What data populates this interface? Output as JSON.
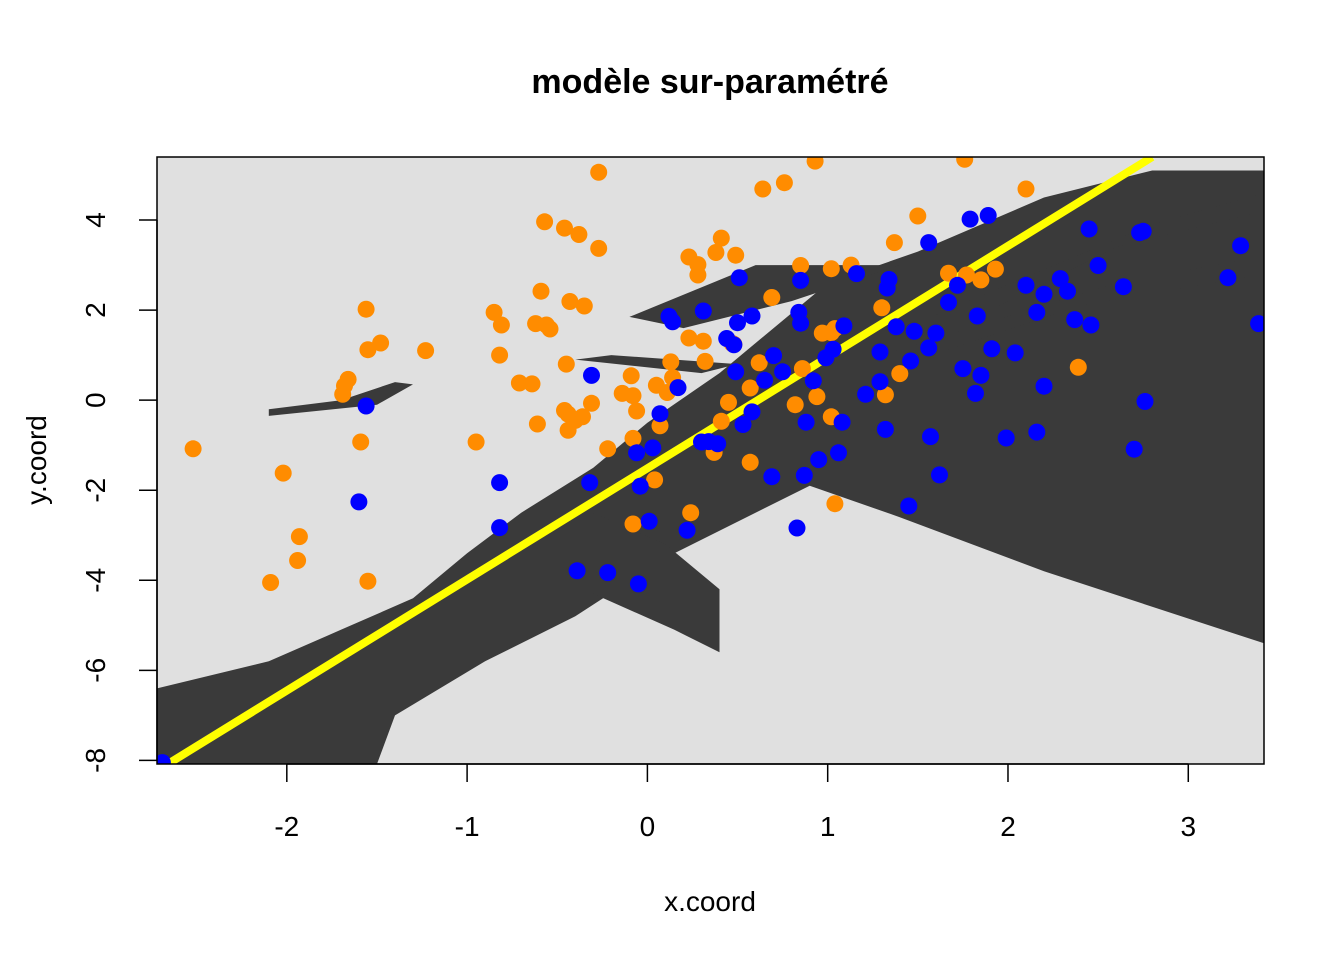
{
  "chart_data": {
    "type": "scatter",
    "title": "modèle sur-paramétré",
    "xlabel": "x.coord",
    "ylabel": "y.coord",
    "xlim": [
      -2.72,
      3.42
    ],
    "ylim": [
      -8.08,
      5.4
    ],
    "xticks": [
      "-2",
      "-1",
      "0",
      "1",
      "2",
      "3"
    ],
    "yticks": [
      "-8",
      "-6",
      "-4",
      "-2",
      "0",
      "2",
      "4"
    ],
    "background": {
      "light": "#e0e0e0",
      "dark": "#3a3a3a"
    },
    "decision_line": {
      "color": "#ffff00",
      "points": [
        [
          -2.66,
          -8.08
        ],
        [
          2.8,
          5.4
        ]
      ]
    },
    "dark_regions": [
      [
        [
          -2.72,
          -6.4
        ],
        [
          -2.1,
          -5.8
        ],
        [
          -1.7,
          -5.1
        ],
        [
          -1.3,
          -4.4
        ],
        [
          -1.0,
          -3.4
        ],
        [
          -0.7,
          -2.5
        ],
        [
          -0.3,
          -1.5
        ],
        [
          0.0,
          -0.5
        ],
        [
          0.4,
          0.6
        ],
        [
          0.7,
          1.6
        ],
        [
          1.0,
          2.6
        ],
        [
          1.5,
          3.3
        ],
        [
          2.2,
          4.5
        ],
        [
          2.8,
          5.1
        ],
        [
          3.42,
          5.1
        ],
        [
          3.42,
          -5.4
        ],
        [
          2.2,
          -3.8
        ],
        [
          1.4,
          -2.6
        ],
        [
          0.9,
          -1.9
        ],
        [
          0.5,
          -2.7
        ],
        [
          0.1,
          -3.5
        ],
        [
          -0.4,
          -4.8
        ],
        [
          -0.9,
          -5.8
        ],
        [
          -1.4,
          -7.0
        ],
        [
          -1.5,
          -8.08
        ],
        [
          -2.72,
          -8.08
        ]
      ],
      [
        [
          -0.3,
          -2.5
        ],
        [
          0.1,
          -3.2
        ],
        [
          0.4,
          -4.2
        ],
        [
          0.4,
          -5.6
        ],
        [
          0.15,
          -5.1
        ],
        [
          -0.3,
          -4.3
        ]
      ],
      [
        [
          -2.1,
          -0.35
        ],
        [
          -1.5,
          -0.1
        ],
        [
          -1.3,
          0.35
        ],
        [
          -1.4,
          0.4
        ],
        [
          -1.7,
          0.0
        ],
        [
          -2.1,
          -0.2
        ]
      ],
      [
        [
          -0.4,
          0.9
        ],
        [
          0.3,
          0.6
        ],
        [
          0.5,
          0.8
        ],
        [
          -0.2,
          1.0
        ]
      ],
      [
        [
          -0.1,
          1.85
        ],
        [
          0.6,
          3.0
        ],
        [
          1.4,
          3.0
        ],
        [
          0.8,
          2.2
        ],
        [
          0.2,
          1.6
        ]
      ],
      [
        [
          1.6,
          1.9
        ],
        [
          2.8,
          3.9
        ],
        [
          3.42,
          4.6
        ],
        [
          3.42,
          4.2
        ],
        [
          2.6,
          3.4
        ],
        [
          1.8,
          1.8
        ]
      ],
      [
        [
          1.3,
          1.0
        ],
        [
          2.6,
          2.6
        ],
        [
          3.42,
          3.2
        ],
        [
          3.42,
          2.8
        ],
        [
          2.4,
          2.1
        ],
        [
          1.5,
          0.9
        ]
      ]
    ],
    "series": [
      {
        "color": "#ff8c00",
        "points": [
          [
            -2.52,
            -1.08
          ],
          [
            -2.02,
            -1.62
          ],
          [
            -1.93,
            -3.03
          ],
          [
            -1.94,
            -3.56
          ],
          [
            -2.09,
            -4.05
          ],
          [
            -1.55,
            -4.02
          ],
          [
            -1.59,
            -0.93
          ],
          [
            -1.66,
            0.46
          ],
          [
            -1.68,
            0.32
          ],
          [
            -1.69,
            0.13
          ],
          [
            -1.55,
            1.12
          ],
          [
            -1.48,
            1.27
          ],
          [
            -1.56,
            2.02
          ],
          [
            -1.23,
            1.1
          ],
          [
            -0.95,
            -0.93
          ],
          [
            -0.82,
            1.0
          ],
          [
            -0.81,
            1.67
          ],
          [
            -0.85,
            1.95
          ],
          [
            -0.71,
            0.38
          ],
          [
            -0.64,
            0.36
          ],
          [
            -0.61,
            -0.53
          ],
          [
            -0.56,
            1.67
          ],
          [
            -0.54,
            1.58
          ],
          [
            -0.62,
            1.7
          ],
          [
            -0.59,
            2.42
          ],
          [
            -0.57,
            3.96
          ],
          [
            -0.46,
            3.82
          ],
          [
            -0.38,
            3.68
          ],
          [
            -0.27,
            3.37
          ],
          [
            -0.27,
            5.06
          ],
          [
            -0.44,
            -0.67
          ],
          [
            -0.44,
            -0.31
          ],
          [
            -0.46,
            -0.23
          ],
          [
            -0.4,
            -0.45
          ],
          [
            -0.36,
            -0.37
          ],
          [
            -0.31,
            -0.07
          ],
          [
            -0.45,
            0.8
          ],
          [
            -0.43,
            2.19
          ],
          [
            -0.35,
            2.09
          ],
          [
            -0.22,
            -1.08
          ],
          [
            -0.14,
            0.15
          ],
          [
            -0.09,
            0.54
          ],
          [
            -0.08,
            0.1
          ],
          [
            -0.06,
            -0.24
          ],
          [
            -0.08,
            -0.85
          ],
          [
            -0.08,
            -2.75
          ],
          [
            0.04,
            -1.77
          ],
          [
            0.05,
            0.33
          ],
          [
            0.07,
            -0.57
          ],
          [
            0.11,
            0.17
          ],
          [
            0.13,
            0.85
          ],
          [
            0.14,
            0.5
          ],
          [
            0.23,
            1.38
          ],
          [
            0.24,
            -2.5
          ],
          [
            0.23,
            3.18
          ],
          [
            0.28,
            3.01
          ],
          [
            0.28,
            2.78
          ],
          [
            0.31,
            1.31
          ],
          [
            0.32,
            0.86
          ],
          [
            0.38,
            3.28
          ],
          [
            0.41,
            3.6
          ],
          [
            0.37,
            -1.16
          ],
          [
            0.41,
            -0.47
          ],
          [
            0.45,
            -0.05
          ],
          [
            0.47,
            1.26
          ],
          [
            0.48,
            1.24
          ],
          [
            0.49,
            3.22
          ],
          [
            0.57,
            -1.38
          ],
          [
            0.57,
            0.27
          ],
          [
            0.62,
            0.83
          ],
          [
            0.64,
            4.69
          ],
          [
            0.69,
            2.28
          ],
          [
            0.76,
            4.83
          ],
          [
            0.85,
            2.99
          ],
          [
            0.82,
            -0.1
          ],
          [
            0.86,
            0.7
          ],
          [
            0.94,
            0.08
          ],
          [
            0.93,
            5.31
          ],
          [
            0.97,
            1.49
          ],
          [
            1.02,
            -0.37
          ],
          [
            1.04,
            -2.3
          ],
          [
            1.02,
            1.5
          ],
          [
            1.04,
            1.59
          ],
          [
            1.02,
            2.92
          ],
          [
            1.13,
            3.0
          ],
          [
            1.3,
            2.05
          ],
          [
            1.32,
            0.12
          ],
          [
            1.37,
            3.5
          ],
          [
            1.4,
            0.59
          ],
          [
            1.5,
            4.09
          ],
          [
            1.67,
            2.82
          ],
          [
            1.77,
            2.78
          ],
          [
            1.76,
            5.35
          ],
          [
            1.85,
            2.67
          ],
          [
            1.93,
            2.91
          ],
          [
            2.1,
            4.69
          ],
          [
            2.39,
            0.73
          ]
        ]
      },
      {
        "color": "#0000ff",
        "points": [
          [
            -2.69,
            -8.05
          ],
          [
            -1.56,
            -0.13
          ],
          [
            -1.6,
            -2.26
          ],
          [
            -0.82,
            -1.83
          ],
          [
            -0.82,
            -2.83
          ],
          [
            -0.31,
            0.55
          ],
          [
            -0.32,
            -1.83
          ],
          [
            -0.39,
            -3.79
          ],
          [
            -0.22,
            -3.83
          ],
          [
            -0.05,
            -4.08
          ],
          [
            -0.06,
            -1.17
          ],
          [
            -0.04,
            -1.91
          ],
          [
            0.03,
            -1.06
          ],
          [
            0.01,
            -2.69
          ],
          [
            0.07,
            -0.3
          ],
          [
            0.12,
            1.86
          ],
          [
            0.14,
            1.74
          ],
          [
            0.17,
            0.28
          ],
          [
            0.22,
            -2.89
          ],
          [
            0.3,
            -0.93
          ],
          [
            0.34,
            -0.92
          ],
          [
            0.39,
            -0.97
          ],
          [
            0.31,
            1.98
          ],
          [
            0.44,
            1.37
          ],
          [
            0.48,
            1.23
          ],
          [
            0.49,
            0.63
          ],
          [
            0.5,
            1.72
          ],
          [
            0.51,
            2.72
          ],
          [
            0.53,
            -0.54
          ],
          [
            0.58,
            -0.26
          ],
          [
            0.58,
            1.87
          ],
          [
            0.65,
            0.44
          ],
          [
            0.7,
            0.99
          ],
          [
            0.69,
            -1.7
          ],
          [
            0.75,
            0.63
          ],
          [
            0.83,
            -2.84
          ],
          [
            0.84,
            1.95
          ],
          [
            0.85,
            1.71
          ],
          [
            0.85,
            2.66
          ],
          [
            0.87,
            -1.67
          ],
          [
            0.88,
            -0.49
          ],
          [
            0.92,
            0.43
          ],
          [
            0.95,
            -1.32
          ],
          [
            0.99,
            0.94
          ],
          [
            1.03,
            1.13
          ],
          [
            1.06,
            -1.17
          ],
          [
            1.08,
            -0.49
          ],
          [
            1.09,
            1.65
          ],
          [
            1.16,
            2.81
          ],
          [
            1.21,
            0.13
          ],
          [
            1.29,
            0.41
          ],
          [
            1.29,
            1.07
          ],
          [
            1.32,
            -0.65
          ],
          [
            1.33,
            2.49
          ],
          [
            1.34,
            2.68
          ],
          [
            1.38,
            1.63
          ],
          [
            1.45,
            -2.35
          ],
          [
            1.46,
            0.87
          ],
          [
            1.48,
            1.53
          ],
          [
            1.56,
            3.5
          ],
          [
            1.56,
            1.16
          ],
          [
            1.57,
            -0.81
          ],
          [
            1.6,
            1.49
          ],
          [
            1.62,
            -1.66
          ],
          [
            1.67,
            2.17
          ],
          [
            1.72,
            2.55
          ],
          [
            1.75,
            0.7
          ],
          [
            1.79,
            4.02
          ],
          [
            1.82,
            0.15
          ],
          [
            1.83,
            1.87
          ],
          [
            1.85,
            0.55
          ],
          [
            1.89,
            4.1
          ],
          [
            1.91,
            1.14
          ],
          [
            1.99,
            -0.84
          ],
          [
            2.04,
            1.05
          ],
          [
            2.1,
            2.55
          ],
          [
            2.16,
            1.95
          ],
          [
            2.16,
            -0.71
          ],
          [
            2.2,
            2.35
          ],
          [
            2.2,
            0.31
          ],
          [
            2.29,
            2.7
          ],
          [
            2.33,
            2.42
          ],
          [
            2.37,
            1.79
          ],
          [
            2.45,
            3.8
          ],
          [
            2.46,
            1.67
          ],
          [
            2.5,
            2.99
          ],
          [
            2.64,
            2.52
          ],
          [
            2.7,
            -1.09
          ],
          [
            2.73,
            3.72
          ],
          [
            2.75,
            3.75
          ],
          [
            2.76,
            -0.03
          ],
          [
            3.22,
            2.72
          ],
          [
            3.29,
            3.43
          ],
          [
            3.39,
            1.7
          ]
        ]
      }
    ]
  }
}
